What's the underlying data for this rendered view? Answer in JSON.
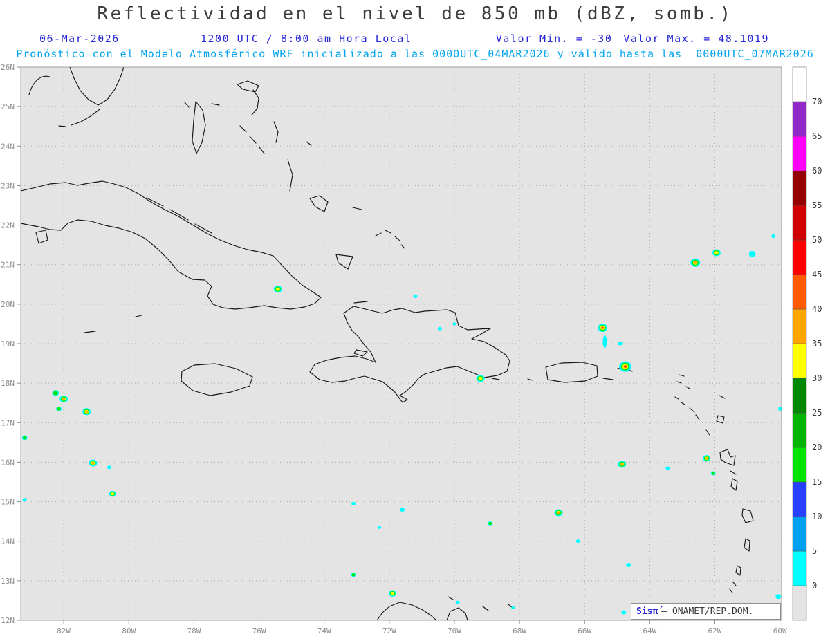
{
  "title": "Reflectividad en el nivel de 850 mb (dBZ, somb.)",
  "header": {
    "date": "06-Mar-2026",
    "time": "1200 UTC / 8:00 am Hora Local",
    "min_label": "Valor Min. = -30",
    "max_label": "Valor Max. = 48.1019",
    "forecast_line": "Pronóstico con el Modelo Atmosférico WRF inicializado a las 0000UTC_04MAR2026 y válido hasta las  0000UTC_07MAR2026"
  },
  "footer": {
    "logo": "Sisπ́",
    "credit": "– ONAMET/REP.DOM."
  },
  "chart_data": {
    "type": "heatmap",
    "title": "Reflectividad en el nivel de 850 mb (dBZ, somb.)",
    "variable": "Reflectividad",
    "level": "850 mb",
    "units": "dBZ",
    "valid_time": "06-Mar-2026 1200 UTC / 8:00 am Hora Local",
    "value_min": -30,
    "value_max": 48.1019,
    "lat_range": [
      12,
      26
    ],
    "lon_range": [
      -83.32,
      -59.95
    ],
    "grid_style": "dotted",
    "lat_ticks": [
      "26N",
      "25N",
      "24N",
      "23N",
      "22N",
      "21N",
      "20N",
      "19N",
      "18N",
      "17N",
      "16N",
      "15N",
      "14N",
      "13N",
      "12N"
    ],
    "lon_ticks": [
      "82W",
      "80W",
      "78W",
      "76W",
      "74W",
      "72W",
      "70W",
      "68W",
      "66W",
      "64W",
      "62W",
      "60W"
    ],
    "colorbar": {
      "position": "right",
      "levels": [
        0,
        5,
        10,
        15,
        20,
        25,
        30,
        35,
        40,
        45,
        50,
        55,
        60,
        65,
        70
      ],
      "colors_bottom_to_top": [
        "#e4e4e4",
        "#00ffff",
        "#00a0f0",
        "#2840ff",
        "#00e400",
        "#00b400",
        "#008800",
        "#ffff00",
        "#ffa500",
        "#ff5a00",
        "#ff0000",
        "#d00000",
        "#940000",
        "#ff00ff",
        "#9128c8",
        "#ffffff"
      ]
    },
    "cells": [
      {
        "lon": -75.42,
        "lat": 20.38,
        "dbz": 32,
        "r": 6
      },
      {
        "lon": -71.2,
        "lat": 20.2,
        "dbz": 8,
        "r": 3
      },
      {
        "lon": -70.45,
        "lat": 19.38,
        "dbz": 8,
        "r": 3
      },
      {
        "lon": -70.0,
        "lat": 19.5,
        "dbz": 8,
        "r": 2.5
      },
      {
        "lon": -65.45,
        "lat": 19.4,
        "dbz": 46,
        "r": 7
      },
      {
        "lon": -65.38,
        "lat": 19.05,
        "dbz": 8,
        "r": 3,
        "ry": 9
      },
      {
        "lon": -64.9,
        "lat": 19.0,
        "dbz": 8,
        "r": 4,
        "ry": 2.5
      },
      {
        "lon": -64.75,
        "lat": 18.42,
        "dbz": 48,
        "r": 9
      },
      {
        "lon": -69.2,
        "lat": 18.12,
        "dbz": 34,
        "r": 6
      },
      {
        "lon": -62.6,
        "lat": 21.05,
        "dbz": 44,
        "r": 7
      },
      {
        "lon": -61.95,
        "lat": 21.3,
        "dbz": 33,
        "r": 6
      },
      {
        "lon": -60.85,
        "lat": 21.27,
        "dbz": 12,
        "r": 5
      },
      {
        "lon": -60.2,
        "lat": 21.72,
        "dbz": 6,
        "r": 3
      },
      {
        "lon": -82.25,
        "lat": 17.75,
        "dbz": 28,
        "r": 5
      },
      {
        "lon": -82.0,
        "lat": 17.6,
        "dbz": 36,
        "r": 6
      },
      {
        "lon": -82.15,
        "lat": 17.35,
        "dbz": 24,
        "r": 4
      },
      {
        "lon": -81.3,
        "lat": 17.28,
        "dbz": 44,
        "r": 6
      },
      {
        "lon": -83.2,
        "lat": 16.62,
        "dbz": 24,
        "r": 4
      },
      {
        "lon": -81.1,
        "lat": 15.98,
        "dbz": 37,
        "r": 6
      },
      {
        "lon": -80.6,
        "lat": 15.87,
        "dbz": 10,
        "r": 3
      },
      {
        "lon": -80.5,
        "lat": 15.2,
        "dbz": 33,
        "r": 5
      },
      {
        "lon": -83.2,
        "lat": 15.05,
        "dbz": 12,
        "r": 3
      },
      {
        "lon": -73.1,
        "lat": 14.95,
        "dbz": 10,
        "r": 3
      },
      {
        "lon": -71.6,
        "lat": 14.8,
        "dbz": 10,
        "r": 3.5
      },
      {
        "lon": -72.3,
        "lat": 14.35,
        "dbz": 8,
        "r": 2.5
      },
      {
        "lon": -68.9,
        "lat": 14.45,
        "dbz": 20,
        "r": 3.5
      },
      {
        "lon": -66.8,
        "lat": 14.72,
        "dbz": 36,
        "r": 6
      },
      {
        "lon": -66.2,
        "lat": 14.0,
        "dbz": 8,
        "r": 3
      },
      {
        "lon": -64.65,
        "lat": 13.4,
        "dbz": 10,
        "r": 3.5
      },
      {
        "lon": -73.1,
        "lat": 13.15,
        "dbz": 20,
        "r": 3.5
      },
      {
        "lon": -71.9,
        "lat": 12.68,
        "dbz": 30,
        "r": 5.5
      },
      {
        "lon": -69.9,
        "lat": 12.45,
        "dbz": 8,
        "r": 3
      },
      {
        "lon": -68.2,
        "lat": 12.32,
        "dbz": 8,
        "r": 2.5
      },
      {
        "lon": -64.8,
        "lat": 12.2,
        "dbz": 10,
        "r": 3.5
      },
      {
        "lon": -60.05,
        "lat": 12.6,
        "dbz": 12,
        "r": 4
      },
      {
        "lon": -64.85,
        "lat": 15.95,
        "dbz": 37,
        "r": 6
      },
      {
        "lon": -63.45,
        "lat": 15.85,
        "dbz": 10,
        "r": 3
      },
      {
        "lon": -62.25,
        "lat": 16.1,
        "dbz": 36,
        "r": 5.5
      },
      {
        "lon": -62.05,
        "lat": 15.72,
        "dbz": 20,
        "r": 3.5
      },
      {
        "lon": -59.98,
        "lat": 17.35,
        "dbz": 12,
        "r": 3.5
      }
    ]
  }
}
